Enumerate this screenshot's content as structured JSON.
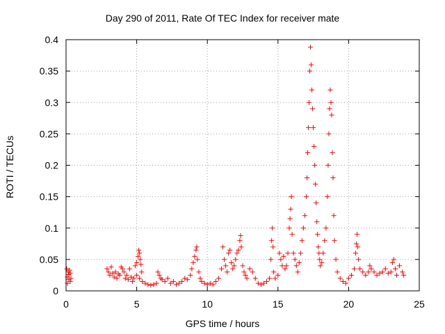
{
  "chart_data": {
    "type": "scatter",
    "title": "Day 290 of 2011, Rate Of TEC Index for receiver mate",
    "xlabel": "GPS time / hours",
    "ylabel": "ROTI / TECUs",
    "xlim": [
      0,
      25
    ],
    "ylim": [
      0,
      0.4
    ],
    "xticks": [
      "0",
      "5",
      "10",
      "15",
      "20",
      "25"
    ],
    "yticks": [
      "0",
      "0.05",
      "0.1",
      "0.15",
      "0.2",
      "0.25",
      "0.3",
      "0.35",
      "0.4"
    ],
    "grid": true,
    "marker": "+",
    "color": "#ff0000",
    "series": [
      {
        "points": [
          [
            0.05,
            0.035
          ],
          [
            0.1,
            0.022
          ],
          [
            0.15,
            0.03
          ],
          [
            0.2,
            0.018
          ],
          [
            0.25,
            0.033
          ],
          [
            0.3,
            0.028
          ],
          [
            0.35,
            0.02
          ],
          [
            0.1,
            0.012
          ],
          [
            0.2,
            0.026
          ],
          [
            0.3,
            0.015
          ],
          [
            2.9,
            0.035
          ],
          [
            3.0,
            0.03
          ],
          [
            3.1,
            0.025
          ],
          [
            3.2,
            0.038
          ],
          [
            3.3,
            0.028
          ],
          [
            3.4,
            0.022
          ],
          [
            3.5,
            0.03
          ],
          [
            3.6,
            0.02
          ],
          [
            3.7,
            0.027
          ],
          [
            3.8,
            0.025
          ],
          [
            3.9,
            0.038
          ],
          [
            4.0,
            0.035
          ],
          [
            4.1,
            0.03
          ],
          [
            4.2,
            0.02
          ],
          [
            4.3,
            0.025
          ],
          [
            4.4,
            0.018
          ],
          [
            4.5,
            0.035
          ],
          [
            4.6,
            0.022
          ],
          [
            4.7,
            0.015
          ],
          [
            4.8,
            0.02
          ],
          [
            4.9,
            0.04
          ],
          [
            5.0,
            0.045
          ],
          [
            5.1,
            0.055
          ],
          [
            5.15,
            0.065
          ],
          [
            5.2,
            0.06
          ],
          [
            5.25,
            0.05
          ],
          [
            5.3,
            0.042
          ],
          [
            5.35,
            0.03
          ],
          [
            5.0,
            0.025
          ],
          [
            5.2,
            0.02
          ],
          [
            5.4,
            0.015
          ],
          [
            5.6,
            0.012
          ],
          [
            5.8,
            0.01
          ],
          [
            6.0,
            0.009
          ],
          [
            6.2,
            0.01
          ],
          [
            6.4,
            0.012
          ],
          [
            6.5,
            0.03
          ],
          [
            6.6,
            0.025
          ],
          [
            6.7,
            0.02
          ],
          [
            6.8,
            0.018
          ],
          [
            7.0,
            0.015
          ],
          [
            7.2,
            0.02
          ],
          [
            7.4,
            0.012
          ],
          [
            7.6,
            0.015
          ],
          [
            7.8,
            0.01
          ],
          [
            8.0,
            0.012
          ],
          [
            8.2,
            0.015
          ],
          [
            8.4,
            0.02
          ],
          [
            8.6,
            0.018
          ],
          [
            8.8,
            0.025
          ],
          [
            8.9,
            0.035
          ],
          [
            9.0,
            0.045
          ],
          [
            9.1,
            0.055
          ],
          [
            9.2,
            0.065
          ],
          [
            9.25,
            0.07
          ],
          [
            9.3,
            0.05
          ],
          [
            9.4,
            0.03
          ],
          [
            9.5,
            0.02
          ],
          [
            9.6,
            0.015
          ],
          [
            9.8,
            0.012
          ],
          [
            10.0,
            0.01
          ],
          [
            10.2,
            0.012
          ],
          [
            10.4,
            0.01
          ],
          [
            10.6,
            0.015
          ],
          [
            10.8,
            0.02
          ],
          [
            11.0,
            0.035
          ],
          [
            11.1,
            0.07
          ],
          [
            11.2,
            0.05
          ],
          [
            11.3,
            0.04
          ],
          [
            11.4,
            0.03
          ],
          [
            11.5,
            0.06
          ],
          [
            11.6,
            0.065
          ],
          [
            11.7,
            0.045
          ],
          [
            11.8,
            0.035
          ],
          [
            11.9,
            0.04
          ],
          [
            12.0,
            0.05
          ],
          [
            12.1,
            0.06
          ],
          [
            12.2,
            0.065
          ],
          [
            12.3,
            0.08
          ],
          [
            12.35,
            0.088
          ],
          [
            12.4,
            0.07
          ],
          [
            12.5,
            0.04
          ],
          [
            12.6,
            0.03
          ],
          [
            12.7,
            0.025
          ],
          [
            12.8,
            0.02
          ],
          [
            13.0,
            0.035
          ],
          [
            13.2,
            0.03
          ],
          [
            13.4,
            0.02
          ],
          [
            13.6,
            0.012
          ],
          [
            13.8,
            0.01
          ],
          [
            14.0,
            0.012
          ],
          [
            14.2,
            0.015
          ],
          [
            14.4,
            0.02
          ],
          [
            14.5,
            0.05
          ],
          [
            14.55,
            0.08
          ],
          [
            14.6,
            0.1
          ],
          [
            14.65,
            0.07
          ],
          [
            14.7,
            0.03
          ],
          [
            14.8,
            0.02
          ],
          [
            15.0,
            0.025
          ],
          [
            15.1,
            0.06
          ],
          [
            15.2,
            0.05
          ],
          [
            15.3,
            0.04
          ],
          [
            15.4,
            0.055
          ],
          [
            15.5,
            0.035
          ],
          [
            15.6,
            0.04
          ],
          [
            15.7,
            0.06
          ],
          [
            15.8,
            0.1
          ],
          [
            15.85,
            0.115
          ],
          [
            15.9,
            0.13
          ],
          [
            15.95,
            0.15
          ],
          [
            16.0,
            0.09
          ],
          [
            16.1,
            0.06
          ],
          [
            16.2,
            0.05
          ],
          [
            16.3,
            0.04
          ],
          [
            16.4,
            0.03
          ],
          [
            16.5,
            0.045
          ],
          [
            16.6,
            0.06
          ],
          [
            16.7,
            0.08
          ],
          [
            16.8,
            0.1
          ],
          [
            16.9,
            0.12
          ],
          [
            17.0,
            0.15
          ],
          [
            17.05,
            0.18
          ],
          [
            17.1,
            0.22
          ],
          [
            17.15,
            0.26
          ],
          [
            17.2,
            0.3
          ],
          [
            17.25,
            0.35
          ],
          [
            17.3,
            0.388
          ],
          [
            17.35,
            0.36
          ],
          [
            17.4,
            0.32
          ],
          [
            17.45,
            0.29
          ],
          [
            17.5,
            0.26
          ],
          [
            17.55,
            0.23
          ],
          [
            17.6,
            0.2
          ],
          [
            17.65,
            0.17
          ],
          [
            17.7,
            0.14
          ],
          [
            17.75,
            0.11
          ],
          [
            17.8,
            0.09
          ],
          [
            17.85,
            0.07
          ],
          [
            17.9,
            0.06
          ],
          [
            17.95,
            0.05
          ],
          [
            18.0,
            0.04
          ],
          [
            18.1,
            0.045
          ],
          [
            18.2,
            0.06
          ],
          [
            18.3,
            0.08
          ],
          [
            18.4,
            0.1
          ],
          [
            18.5,
            0.15
          ],
          [
            18.55,
            0.2
          ],
          [
            18.6,
            0.25
          ],
          [
            18.65,
            0.29
          ],
          [
            18.7,
            0.32
          ],
          [
            18.75,
            0.3
          ],
          [
            18.8,
            0.28
          ],
          [
            18.85,
            0.22
          ],
          [
            18.9,
            0.18
          ],
          [
            18.95,
            0.12
          ],
          [
            19.0,
            0.08
          ],
          [
            19.1,
            0.05
          ],
          [
            19.2,
            0.03
          ],
          [
            19.4,
            0.02
          ],
          [
            19.6,
            0.015
          ],
          [
            19.8,
            0.012
          ],
          [
            20.0,
            0.02
          ],
          [
            20.2,
            0.025
          ],
          [
            20.4,
            0.035
          ],
          [
            20.5,
            0.06
          ],
          [
            20.55,
            0.075
          ],
          [
            20.6,
            0.09
          ],
          [
            20.65,
            0.07
          ],
          [
            20.7,
            0.05
          ],
          [
            20.8,
            0.035
          ],
          [
            21.0,
            0.03
          ],
          [
            21.2,
            0.025
          ],
          [
            21.4,
            0.03
          ],
          [
            21.5,
            0.04
          ],
          [
            21.6,
            0.035
          ],
          [
            21.8,
            0.03
          ],
          [
            22.0,
            0.025
          ],
          [
            22.2,
            0.028
          ],
          [
            22.4,
            0.03
          ],
          [
            22.6,
            0.035
          ],
          [
            22.8,
            0.028
          ],
          [
            23.0,
            0.03
          ],
          [
            23.1,
            0.045
          ],
          [
            23.2,
            0.05
          ],
          [
            23.3,
            0.035
          ],
          [
            23.4,
            0.025
          ],
          [
            23.6,
            0.04
          ],
          [
            23.8,
            0.03
          ],
          [
            23.9,
            0.025
          ]
        ]
      }
    ]
  }
}
